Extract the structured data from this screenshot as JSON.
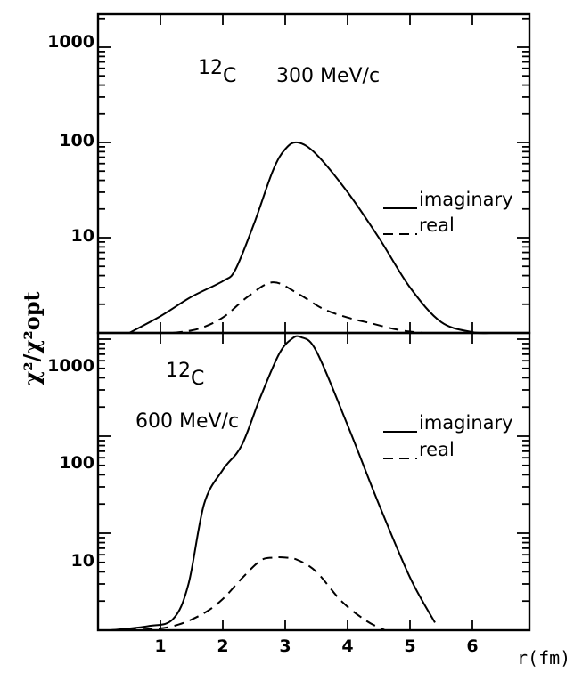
{
  "chart_data": {
    "type": "line",
    "ylabel": "χ²/χ²opt",
    "xlabel": "r(fm)",
    "x_ticks": [
      "1",
      "2",
      "3",
      "4",
      "5",
      "6"
    ],
    "xlim": [
      0,
      6.9
    ],
    "y_scale": "log",
    "legend": [
      "imaginary",
      "real"
    ],
    "panels": [
      {
        "nucleus": "12",
        "nucleus_symbol": "C",
        "momentum": "300 MeV/c",
        "y_ticks": [
          "1000",
          "100",
          "10"
        ],
        "ylim": [
          1,
          2000
        ],
        "series": [
          {
            "name": "imaginary",
            "x": [
              0.5,
              1.0,
              1.5,
              2.0,
              2.2,
              2.5,
              2.8,
              3.0,
              3.2,
              3.5,
              4.0,
              4.5,
              5.0,
              5.5,
              6.0,
              6.3
            ],
            "y": [
              1.0,
              1.5,
              2.4,
              3.5,
              4.6,
              14,
              50,
              85,
              100,
              75,
              30,
              10,
              3,
              1.3,
              1.02,
              1.0
            ]
          },
          {
            "name": "real",
            "x": [
              1.2,
              1.6,
              2.0,
              2.4,
              2.8,
              3.2,
              3.6,
              4.0,
              4.4,
              4.8,
              5.2
            ],
            "y": [
              1.0,
              1.1,
              1.45,
              2.4,
              3.4,
              2.6,
              1.8,
              1.45,
              1.25,
              1.08,
              1.0
            ]
          }
        ]
      },
      {
        "nucleus": "12",
        "nucleus_symbol": "C",
        "momentum": "600 MeV/c",
        "y_ticks": [
          "1000",
          "100",
          "10"
        ],
        "ylim": [
          1,
          2000
        ],
        "series": [
          {
            "name": "imaginary",
            "x": [
              0.2,
              0.8,
              1.2,
              1.45,
              1.7,
              2.0,
              2.3,
              2.6,
              2.9,
              3.1,
              3.25,
              3.5,
              4.0,
              4.5,
              5.0,
              5.4
            ],
            "y": [
              1.0,
              1.1,
              1.3,
              3,
              20,
              45,
              80,
              250,
              700,
              1000,
              1050,
              750,
              130,
              20,
              3.5,
              1.2
            ]
          },
          {
            "name": "real",
            "x": [
              0.2,
              0.9,
              1.3,
              1.7,
              2.0,
              2.3,
              2.6,
              2.8,
              3.0,
              3.2,
              3.5,
              3.9,
              4.3,
              4.6
            ],
            "y": [
              1.0,
              1.03,
              1.15,
              1.5,
              2.1,
              3.4,
              5.2,
              5.6,
              5.6,
              5.3,
              4.0,
              2.0,
              1.25,
              1.0
            ]
          }
        ]
      }
    ]
  }
}
